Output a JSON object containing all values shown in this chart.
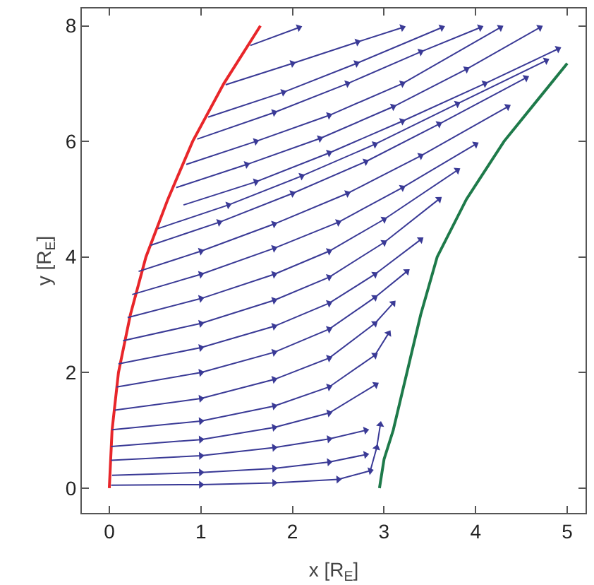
{
  "chart_data": {
    "type": "line",
    "xlabel": "x [R$_{E}$]",
    "ylabel": "y [R$_{E}$]",
    "xlim": [
      -0.3,
      5.2
    ],
    "ylim": [
      -0.43,
      8.3
    ],
    "xticks": [
      0,
      1,
      2,
      3,
      4,
      5
    ],
    "yticks": [
      0,
      2,
      4,
      6,
      8
    ],
    "series": [
      {
        "color": "#e8262a",
        "marker": "none",
        "x": [
          0,
          0.03,
          0.1,
          0.23,
          0.4,
          0.64,
          0.91,
          1.25,
          1.65
        ],
        "values": [
          0,
          1,
          2,
          3,
          4,
          5,
          6,
          7,
          8
        ]
      },
      {
        "color": "#1e7a4a",
        "marker": "none",
        "x": [
          2.95,
          3.0,
          3.1,
          3.25,
          3.4,
          3.58,
          3.9,
          4.31,
          5.0
        ],
        "values": [
          0,
          0.5,
          1,
          2,
          3,
          4,
          5,
          6,
          7.35
        ]
      },
      {
        "color": "#3a3a96",
        "x": [
          0.02,
          1,
          1.8,
          2.5,
          2.85,
          2.92,
          2.96
        ],
        "values": [
          0.05,
          0.06,
          0.09,
          0.15,
          0.3,
          0.7,
          1.1
        ]
      },
      {
        "color": "#3a3a96",
        "x": [
          0.03,
          1,
          1.8,
          2.4,
          2.8
        ],
        "values": [
          0.22,
          0.27,
          0.34,
          0.45,
          0.58
        ]
      },
      {
        "color": "#3a3a96",
        "x": [
          0.02,
          1,
          1.8,
          2.4,
          2.8
        ],
        "values": [
          0.48,
          0.56,
          0.7,
          0.85,
          1.0
        ]
      },
      {
        "color": "#3a3a96",
        "x": [
          0.02,
          1,
          1.8,
          2.4,
          2.91
        ],
        "values": [
          0.72,
          0.84,
          1.05,
          1.3,
          1.79
        ]
      },
      {
        "color": "#3a3a96",
        "x": [
          0.03,
          1,
          1.8,
          2.4,
          2.9,
          3.05
        ],
        "values": [
          1.01,
          1.16,
          1.42,
          1.75,
          2.3,
          2.68
        ]
      },
      {
        "color": "#3a3a96",
        "x": [
          0.06,
          1,
          1.8,
          2.4,
          2.9,
          3.1
        ],
        "values": [
          1.35,
          1.55,
          1.88,
          2.25,
          2.85,
          3.2
        ]
      },
      {
        "color": "#3a3a96",
        "x": [
          0.08,
          1,
          1.8,
          2.4,
          2.9,
          3.25
        ],
        "values": [
          1.75,
          2.0,
          2.35,
          2.75,
          3.3,
          3.75
        ]
      },
      {
        "color": "#3a3a96",
        "x": [
          0.1,
          1,
          1.8,
          2.4,
          2.9,
          3.4
        ],
        "values": [
          2.15,
          2.43,
          2.8,
          3.2,
          3.7,
          4.3
        ]
      },
      {
        "color": "#3a3a96",
        "x": [
          0.15,
          1,
          1.8,
          2.4,
          3.0,
          3.6
        ],
        "values": [
          2.55,
          2.85,
          3.25,
          3.65,
          4.25,
          5.0
        ]
      },
      {
        "color": "#3a3a96",
        "x": [
          0.2,
          1,
          1.8,
          2.4,
          3.0,
          3.8
        ],
        "values": [
          2.95,
          3.28,
          3.7,
          4.1,
          4.65,
          5.5
        ]
      },
      {
        "color": "#3a3a96",
        "x": [
          0.25,
          1,
          1.8,
          2.5,
          3.2,
          4.0
        ],
        "values": [
          3.35,
          3.7,
          4.15,
          4.6,
          5.2,
          5.95
        ]
      },
      {
        "color": "#3a3a96",
        "x": [
          0.32,
          1,
          1.8,
          2.6,
          3.4,
          4.35
        ],
        "values": [
          3.75,
          4.1,
          4.57,
          5.1,
          5.75,
          6.6
        ]
      },
      {
        "color": "#3a3a96",
        "x": [
          0.45,
          1.2,
          2.0,
          2.8,
          3.6,
          4.55
        ],
        "values": [
          4.2,
          4.6,
          5.1,
          5.65,
          6.3,
          7.1
        ]
      },
      {
        "color": "#3a3a96",
        "x": [
          0.53,
          1.3,
          2.1,
          2.9,
          3.8,
          4.77
        ],
        "values": [
          4.49,
          4.9,
          5.4,
          5.95,
          6.65,
          7.4
        ]
      },
      {
        "color": "#3a3a96",
        "x": [
          0.81,
          1.6,
          2.4,
          3.2,
          4.1,
          4.9
        ],
        "values": [
          4.9,
          5.3,
          5.8,
          6.35,
          7.0,
          7.6
        ]
      },
      {
        "color": "#3a3a96",
        "x": [
          0.73,
          1.5,
          2.3,
          3.1,
          3.9,
          4.7
        ],
        "values": [
          5.2,
          5.6,
          6.05,
          6.6,
          7.25,
          7.97
        ]
      },
      {
        "color": "#3a3a96",
        "x": [
          0.84,
          1.6,
          2.4,
          3.2,
          4.27
        ],
        "values": [
          5.6,
          6.0,
          6.45,
          7.0,
          7.97
        ]
      },
      {
        "color": "#3a3a96",
        "x": [
          0.96,
          1.8,
          2.6,
          3.4,
          4.05
        ],
        "values": [
          6.04,
          6.5,
          7.0,
          7.55,
          7.97
        ]
      },
      {
        "color": "#3a3a96",
        "x": [
          1.08,
          1.9,
          2.7,
          3.63
        ],
        "values": [
          6.42,
          6.85,
          7.35,
          7.97
        ]
      },
      {
        "color": "#3a3a96",
        "x": [
          1.27,
          2.0,
          2.71,
          3.2
        ],
        "values": [
          6.98,
          7.35,
          7.72,
          7.97
        ]
      },
      {
        "color": "#3a3a96",
        "x": [
          1.54,
          2.07
        ],
        "values": [
          7.66,
          7.97
        ]
      }
    ],
    "marker": "triangle",
    "line_style": "solid"
  }
}
